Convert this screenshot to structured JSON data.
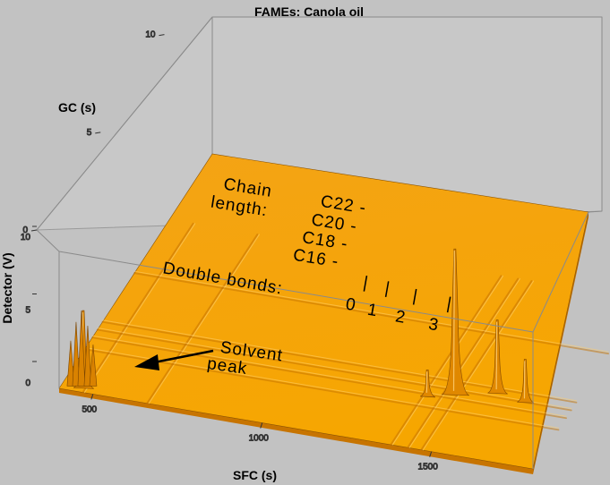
{
  "chart_data": {
    "type": "surface3d",
    "title": "FAMEs: Canola oil",
    "xlabel": "SFC (s)",
    "ylabel": "GC (s)",
    "zlabel": "Detector (V)",
    "x_ticks": [
      "500",
      "1000",
      "1500"
    ],
    "y_ticks": [
      "0",
      "5",
      "10"
    ],
    "z_ticks": [
      "0",
      "5",
      "10"
    ],
    "xlim": [
      400,
      1800
    ],
    "ylim": [
      0,
      12
    ],
    "zlim": [
      0,
      10
    ],
    "surface_color": "#f5a000",
    "peaks": [
      {
        "x": 460,
        "y": 0.3,
        "z": 5.5
      },
      {
        "x": 1390,
        "y": 2.6,
        "z": 1.8
      },
      {
        "x": 1460,
        "y": 2.9,
        "z": 10.5
      },
      {
        "x": 1570,
        "y": 3.3,
        "z": 5.2
      },
      {
        "x": 1660,
        "y": 3.1,
        "z": 3.0
      }
    ],
    "annotations": {
      "chain_line1": "Chain",
      "chain_line2": "length:",
      "chains": [
        "C22 -",
        "C20 -",
        "C18 -",
        "C16 -"
      ],
      "double_bonds": "Double bonds:",
      "bond_counts": [
        "0",
        "1",
        "2",
        "3"
      ],
      "bond_marks": [
        "|",
        "|",
        "|",
        "|"
      ],
      "solvent_line1": "Solvent",
      "solvent_line2": "peak"
    }
  }
}
